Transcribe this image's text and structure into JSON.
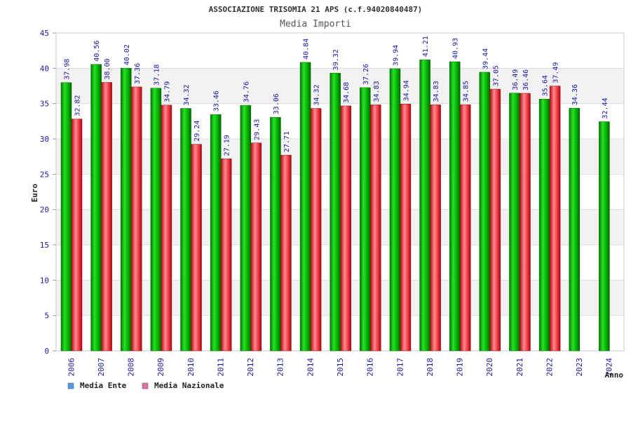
{
  "chart_data": {
    "type": "bar",
    "title": "ASSOCIAZIONE TRISOMIA 21 APS (c.f.94020840487)",
    "subtitle": "Media Importi",
    "xlabel": "Anno",
    "ylabel": "Euro",
    "ylim": [
      0,
      45
    ],
    "ytick_step": 5,
    "grid": true,
    "legend_position": "bottom-left",
    "categories": [
      "2006",
      "2007",
      "2008",
      "2009",
      "2010",
      "2011",
      "2012",
      "2013",
      "2014",
      "2015",
      "2016",
      "2017",
      "2018",
      "2019",
      "2020",
      "2021",
      "2022",
      "2023",
      "2024"
    ],
    "series": [
      {
        "name": "Media Ente",
        "color": "#00b400",
        "legend_color": "#4f9be8",
        "labels": [
          "37.98",
          "40.56",
          "40.02",
          "37.18",
          "34.32",
          "33.46",
          "34.76",
          "33.06",
          "40.84",
          "39.32",
          "37.26",
          "39.94",
          "41.21",
          "40.93",
          "39.44",
          "36.49",
          "35.64",
          "34.36",
          "32.44"
        ],
        "values": [
          37.98,
          40.56,
          40.02,
          37.18,
          34.32,
          33.46,
          34.76,
          33.06,
          40.84,
          39.32,
          37.26,
          39.94,
          41.21,
          40.93,
          39.44,
          36.49,
          35.64,
          34.36,
          32.44
        ]
      },
      {
        "name": "Media Nazionale",
        "color": "#e8323c",
        "legend_color": "#e070a8",
        "labels": [
          "32.82",
          "38.00",
          "37.36",
          "34.79",
          "29.24",
          "27.19",
          "29.43",
          "27.71",
          "34.32",
          "34.68",
          "34.83",
          "34.94",
          "34.83",
          "34.85",
          "37.05",
          "36.46",
          "37.49",
          null,
          null
        ],
        "values": [
          32.82,
          38.0,
          37.36,
          34.79,
          29.24,
          27.19,
          29.43,
          27.71,
          34.32,
          34.68,
          34.83,
          34.94,
          34.83,
          34.85,
          37.05,
          36.46,
          37.49,
          null,
          null
        ]
      }
    ]
  }
}
